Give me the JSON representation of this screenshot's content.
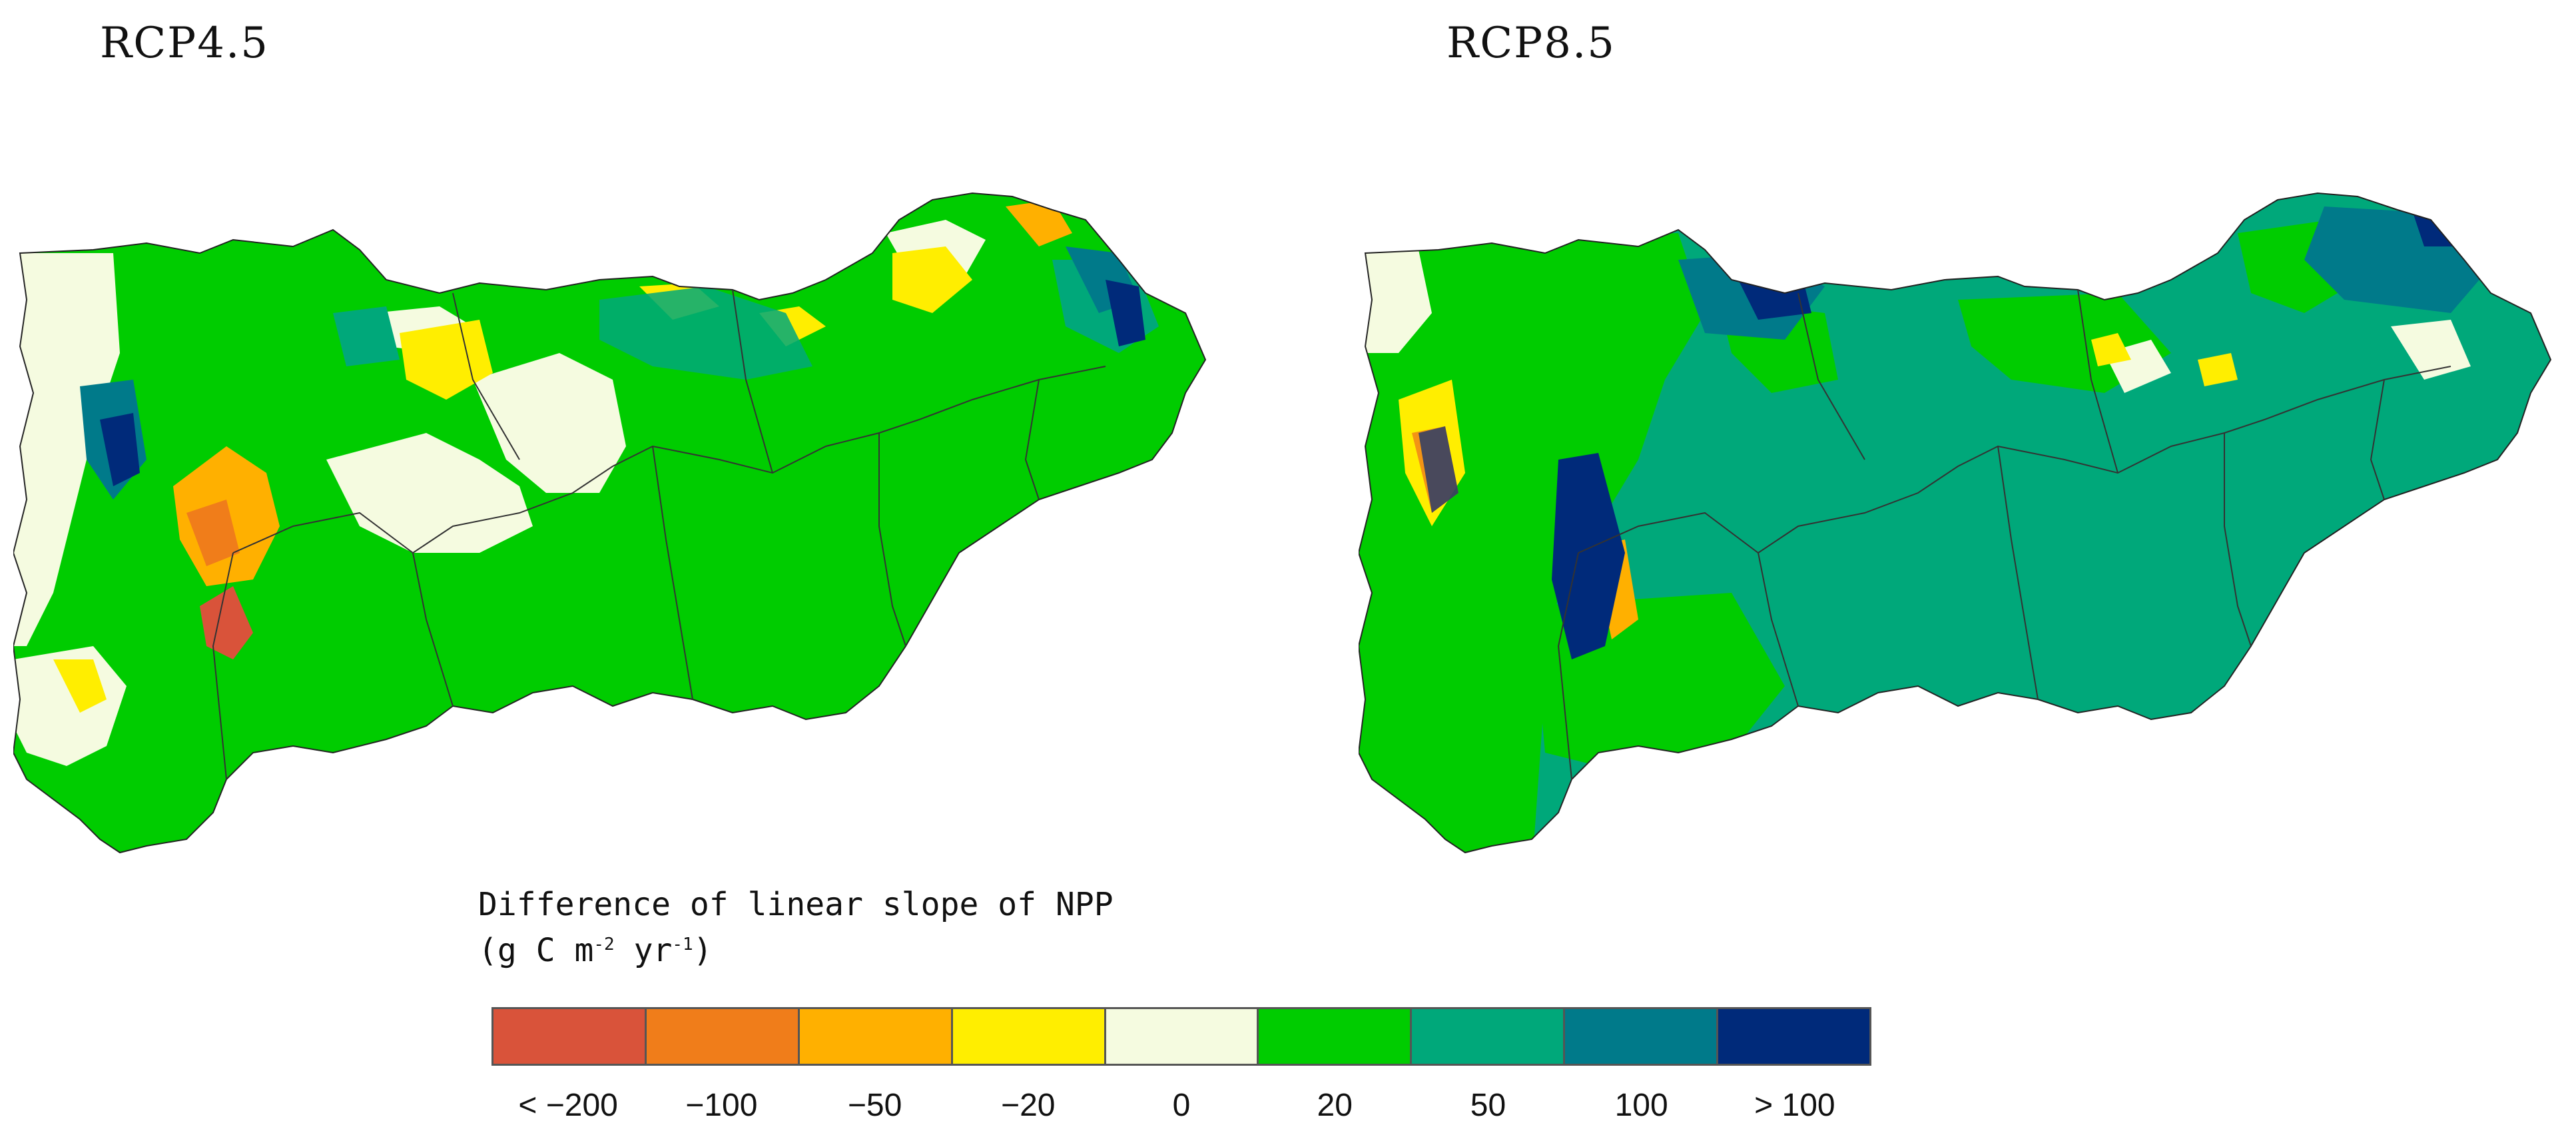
{
  "panels": [
    {
      "title": "RCP4.5",
      "scenario": "RCP4.5"
    },
    {
      "title": "RCP8.5",
      "scenario": "RCP8.5"
    }
  ],
  "legend": {
    "title_line1": "Difference of linear slope of NPP",
    "title_line2_prefix": "(g C m",
    "title_exp1": "-2",
    "title_mid": " yr",
    "title_exp2": "-1",
    "title_suffix": ")",
    "classes": [
      {
        "color": "#d9533a",
        "label": "< −200"
      },
      {
        "color": "#f07d1a",
        "label": "−100"
      },
      {
        "color": "#ffb000",
        "label": "−50"
      },
      {
        "color": "#ffee00",
        "label": "−20"
      },
      {
        "color": "#f5fbe0",
        "label": "0"
      },
      {
        "color": "#00cc00",
        "label": "20"
      },
      {
        "color": "#00a87a",
        "label": "50"
      },
      {
        "color": "#007a8a",
        "label": "100"
      },
      {
        "color": "#002a7a",
        "label": "> 100"
      }
    ]
  }
}
